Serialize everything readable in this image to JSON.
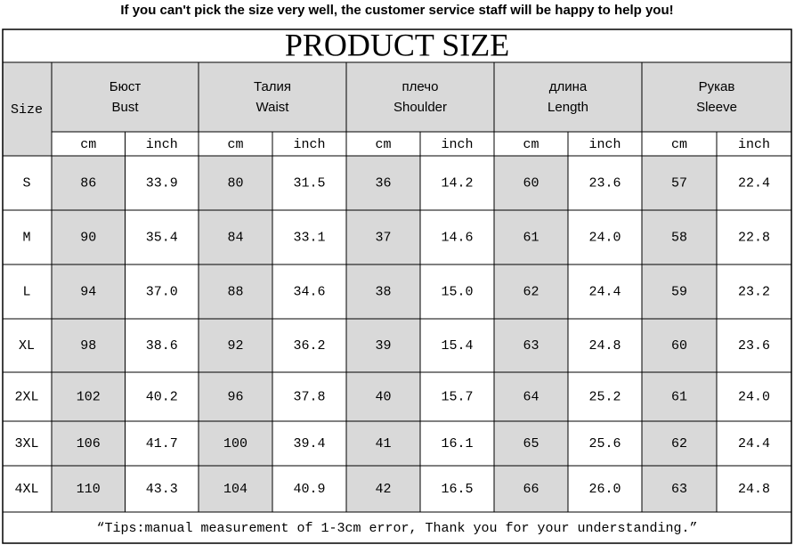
{
  "notice": "If you can't pick the size very well, the customer service staff will be happy to help you!",
  "title": "PRODUCT SIZE",
  "size_label": "Size",
  "columns": [
    {
      "ru": "Бюст",
      "en": "Bust"
    },
    {
      "ru": "Талия",
      "en": "Waist"
    },
    {
      "ru": "плечо",
      "en": "Shoulder"
    },
    {
      "ru": "длина",
      "en": "Length"
    },
    {
      "ru": "Рукав",
      "en": "Sleeve"
    }
  ],
  "units": [
    "cm",
    "inch"
  ],
  "rows": [
    {
      "size": "S",
      "values": [
        "86",
        "33.9",
        "80",
        "31.5",
        "36",
        "14.2",
        "60",
        "23.6",
        "57",
        "22.4"
      ]
    },
    {
      "size": "M",
      "values": [
        "90",
        "35.4",
        "84",
        "33.1",
        "37",
        "14.6",
        "61",
        "24.0",
        "58",
        "22.8"
      ]
    },
    {
      "size": "L",
      "values": [
        "94",
        "37.0",
        "88",
        "34.6",
        "38",
        "15.0",
        "62",
        "24.4",
        "59",
        "23.2"
      ]
    },
    {
      "size": "XL",
      "values": [
        "98",
        "38.6",
        "92",
        "36.2",
        "39",
        "15.4",
        "63",
        "24.8",
        "60",
        "23.6"
      ]
    },
    {
      "size": "2XL",
      "values": [
        "102",
        "40.2",
        "96",
        "37.8",
        "40",
        "15.7",
        "64",
        "25.2",
        "61",
        "24.0"
      ]
    },
    {
      "size": "3XL",
      "values": [
        "106",
        "41.7",
        "100",
        "39.4",
        "41",
        "16.1",
        "65",
        "25.6",
        "62",
        "24.4"
      ]
    },
    {
      "size": "4XL",
      "values": [
        "110",
        "43.3",
        "104",
        "40.9",
        "42",
        "16.5",
        "66",
        "26.0",
        "63",
        "24.8"
      ]
    }
  ],
  "tip": "“Tips:manual measurement of 1-3cm error, Thank you for your understanding.”"
}
